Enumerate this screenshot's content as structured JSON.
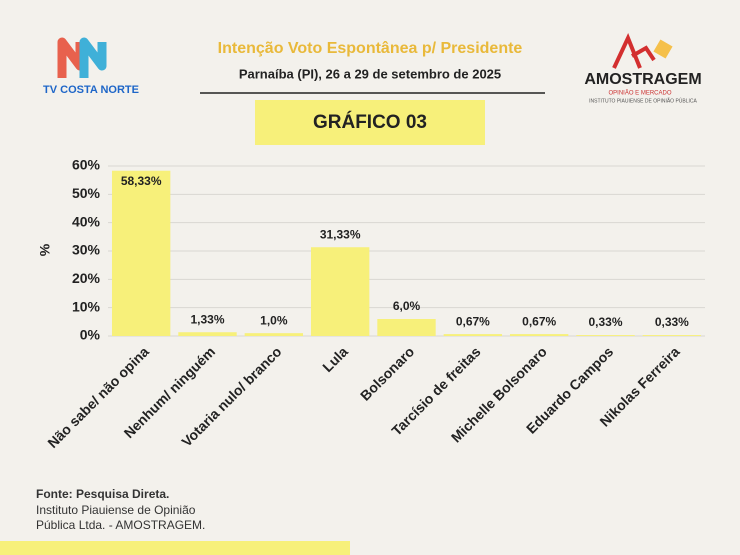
{
  "header": {
    "logo_left": "TV COSTA NORTE",
    "logo_right": "AMOSTRAGEM",
    "logo_right_sub1": "OPINIÃO E MERCADO",
    "logo_right_sub2": "INSTITUTO PIAUIENSE DE OPINIÃO PÚBLICA",
    "badge": "GRÁFICO 03"
  },
  "chart_data": {
    "type": "bar",
    "title": "Intenção Voto Espontânea p/ Presidente",
    "subtitle": "Parnaíba (PI), 26 a 29 de setembro de 2025",
    "y_label": "%",
    "categories": [
      "Não sabe/ não opina",
      "Nenhum/ ninguém",
      "Votaria nulo/ branco",
      "Lula",
      "Bolsonaro",
      "Tarcísio de freitas",
      "Michelle Bolsonaro",
      "Eduardo Campos",
      "Nikolas Ferreira"
    ],
    "values": [
      58.33,
      1.33,
      1.0,
      31.33,
      6.0,
      0.67,
      0.67,
      0.33,
      0.33
    ],
    "value_labels": [
      "58,33%",
      "1,33%",
      "1,0%",
      "31,33%",
      "6,0%",
      "0,67%",
      "0,67%",
      "0,33%",
      "0,33%"
    ],
    "color": "#f7f07a",
    "ylim": [
      0,
      60
    ],
    "yticks": [
      {
        "value": 0,
        "label": "0%"
      },
      {
        "value": 10,
        "label": "10%"
      },
      {
        "value": 20,
        "label": "20%"
      },
      {
        "value": 30,
        "label": "30%"
      },
      {
        "value": 40,
        "label": "40%"
      },
      {
        "value": 50,
        "label": "50%"
      },
      {
        "value": 60,
        "label": "60%"
      }
    ],
    "grid": true
  },
  "footer": {
    "source": "Fonte: Pesquisa Direta.",
    "line1": "Instituto Piauiense de Opinião",
    "line2": "Pública Ltda. - AMOSTRAGEM."
  }
}
